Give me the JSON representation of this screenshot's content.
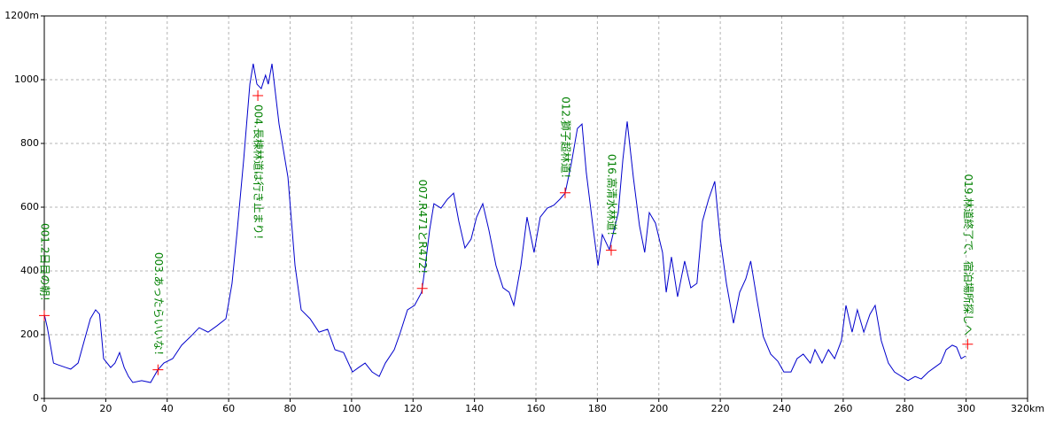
{
  "chart_data": {
    "type": "line",
    "x": [
      0,
      1,
      2,
      3,
      4.3,
      7,
      8.6,
      11,
      13,
      15,
      16.7,
      18,
      19.3,
      21.6,
      23,
      24.5,
      26,
      27.4,
      28.8,
      31.7,
      34.6,
      36.9,
      38.9,
      41.8,
      44.7,
      47.6,
      50.4,
      53.3,
      56.2,
      59.1,
      61.1,
      62.8,
      64.9,
      66.9,
      68,
      69.2,
      70.6,
      72,
      72.9,
      74.1,
      76.4,
      79.3,
      81.6,
      83.6,
      86.5,
      89.4,
      92.2,
      94.6,
      97.4,
      100.3,
      102.3,
      104.4,
      106.7,
      109,
      111,
      113.9,
      115.9,
      118.2,
      120.5,
      122.8,
      124,
      125.4,
      126.8,
      129.1,
      131.2,
      133.2,
      134.9,
      136.9,
      138.9,
      140.7,
      142.7,
      144.7,
      147,
      149.3,
      151.3,
      152.8,
      155.1,
      157.1,
      159.4,
      161.4,
      163.7,
      165.8,
      167.8,
      169.5,
      171.5,
      173.5,
      175,
      176.4,
      178.7,
      180.2,
      181.6,
      183.9,
      185.4,
      186.8,
      188.3,
      189.7,
      191.7,
      193.7,
      195.4,
      196.9,
      198.9,
      201.2,
      202.4,
      204.1,
      206.1,
      208.4,
      210.4,
      212.4,
      214.2,
      216.2,
      218.2,
      220,
      222,
      224.3,
      226.3,
      228.3,
      229.9,
      232,
      234,
      236.4,
      238.7,
      240.7,
      243,
      245,
      247,
      249.3,
      250.8,
      253.1,
      255.2,
      257.2,
      259.4,
      260.9,
      262.9,
      264.6,
      266.7,
      268.7,
      270.4,
      272.4,
      274.7,
      276.7,
      279,
      281.1,
      283.4,
      285.4,
      287.7,
      289.7,
      291.7,
      293.5,
      295.5,
      296.9,
      298.4,
      299.8
    ],
    "series": [
      {
        "color": "#0000cc",
        "values": [
          264,
          222,
          167,
          111,
          106,
          97,
          92,
          111,
          181,
          250,
          278,
          264,
          125,
          97,
          111,
          144,
          97,
          69,
          50,
          56,
          50,
          89,
          111,
          125,
          167,
          194,
          222,
          208,
          228,
          250,
          361,
          528,
          750,
          986,
          1050,
          986,
          972,
          1014,
          986,
          1050,
          861,
          694,
          417,
          278,
          250,
          208,
          217,
          153,
          144,
          83,
          97,
          111,
          83,
          69,
          111,
          153,
          208,
          278,
          292,
          333,
          417,
          528,
          611,
          597,
          625,
          644,
          556,
          472,
          500,
          569,
          611,
          528,
          417,
          347,
          333,
          292,
          417,
          569,
          458,
          569,
          597,
          606,
          625,
          644,
          736,
          847,
          861,
          708,
          528,
          417,
          514,
          467,
          528,
          583,
          750,
          869,
          694,
          542,
          458,
          583,
          550,
          458,
          333,
          444,
          319,
          431,
          347,
          361,
          556,
          625,
          681,
          500,
          361,
          236,
          333,
          375,
          431,
          306,
          194,
          139,
          117,
          83,
          83,
          125,
          139,
          111,
          153,
          111,
          153,
          125,
          181,
          292,
          208,
          278,
          208,
          264,
          292,
          181,
          111,
          83,
          69,
          56,
          69,
          61,
          83,
          97,
          111,
          153,
          167,
          161,
          125,
          133
        ]
      }
    ],
    "waypoints": {
      "color": "#ff0000",
      "label_color": "#008000",
      "x": [
        0,
        37,
        69.5,
        123,
        169.5,
        184.5,
        300.5
      ],
      "values": [
        260,
        90,
        950,
        345,
        645,
        465,
        170
      ],
      "labels": [
        "001.2日目の朝！",
        "003.あったらいいな！",
        "004.長棟林道は行き止まり！",
        "007.R471とR472！",
        "012.獅子超林道！",
        "016.高清水林道！",
        "019.林道終了で、宿泊場所探しへ"
      ]
    },
    "xlim": [
      0,
      320
    ],
    "xticks": [
      0,
      20,
      40,
      60,
      80,
      100,
      120,
      140,
      160,
      180,
      200,
      220,
      240,
      260,
      280,
      300,
      {
        "value": 320,
        "label": "320km"
      }
    ],
    "ylim": [
      0,
      1200
    ],
    "yticks": [
      0,
      200,
      400,
      600,
      800,
      1000,
      {
        "value": 1200,
        "label": "1200m"
      }
    ],
    "grid": true
  }
}
